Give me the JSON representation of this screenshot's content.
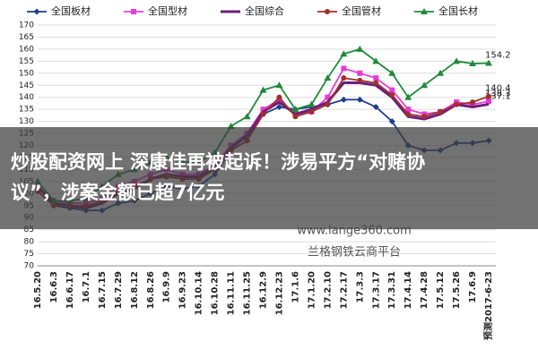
{
  "chart_data": {
    "type": "line",
    "categories": [
      "16.5.20",
      "16.6.3",
      "16.6.17",
      "16.7.1",
      "16.7.15",
      "16.7.29",
      "16.8.12",
      "16.8.26",
      "16.9.9",
      "16.9.23",
      "16.10.14",
      "16.10.28",
      "16.11.11",
      "16.11.25",
      "16.12.9",
      "16.12.23",
      "17.1.6",
      "17.1.20",
      "17.2.10",
      "17.2.17",
      "17.3.3",
      "17.3.17",
      "17.3.31",
      "17.4.14",
      "17.4.28",
      "17.5.12",
      "17.5.26",
      "17.6.9",
      "预测2017-6-23"
    ],
    "series": [
      {
        "name": "全国板材",
        "color": "#1f3d8f",
        "marker": "diamond",
        "end_label": false,
        "values": [
          103,
          95,
          94,
          93,
          93,
          96,
          97,
          100,
          103,
          102,
          103,
          108,
          118,
          122,
          133,
          136,
          135,
          136,
          137,
          139,
          139,
          136,
          130,
          120,
          118,
          118,
          121,
          121,
          122
        ]
      },
      {
        "name": "全国型材",
        "color": "#e83ad8",
        "marker": "square",
        "end_label": true,
        "values": [
          102,
          97,
          96,
          96,
          98,
          103,
          105,
          108,
          110,
          108,
          108,
          112,
          120,
          125,
          135,
          139,
          133,
          134,
          140,
          152,
          150,
          148,
          143,
          135,
          133,
          134,
          138,
          137,
          138.3
        ]
      },
      {
        "name": "全国综合",
        "color": "#6a1f7a",
        "marker": "none",
        "end_label": true,
        "values": [
          103,
          96,
          95,
          94,
          96,
          100,
          102,
          106,
          108,
          107,
          107,
          111,
          119,
          124,
          134,
          138,
          133,
          135,
          138,
          146,
          146,
          145,
          140,
          132,
          131,
          133,
          137,
          136,
          137.1
        ]
      },
      {
        "name": "全国管材",
        "color": "#a0302a",
        "marker": "circle",
        "end_label": true,
        "values": [
          101,
          95,
          95,
          95,
          97,
          101,
          103,
          106,
          107,
          106,
          106,
          110,
          118,
          122,
          133,
          140,
          132,
          134,
          137,
          148,
          147,
          146,
          141,
          133,
          132,
          134,
          137,
          138,
          140.4
        ]
      },
      {
        "name": "全国长材",
        "color": "#1f8a3a",
        "marker": "triangle",
        "end_label": true,
        "values": [
          105,
          97,
          97,
          98,
          103,
          108,
          110,
          113,
          115,
          113,
          113,
          117,
          128,
          132,
          143,
          145,
          135,
          137,
          148,
          158,
          160,
          155,
          150,
          140,
          145,
          150,
          155,
          154,
          154.2
        ]
      }
    ],
    "ylim": [
      70,
      170
    ],
    "yticks": [
      70,
      75,
      80,
      85,
      90,
      95,
      100,
      105,
      110,
      115,
      120,
      125,
      130,
      135,
      140,
      145,
      150,
      155,
      160,
      165,
      170
    ],
    "grid": true,
    "watermark": [
      "www.lange360.com",
      "兰格钢铁云商平台"
    ],
    "banner": [
      "炒股配资网上 深康佳再被起诉！涉易平方“对赌协",
      "议”，涉案金额已超7亿元"
    ]
  }
}
